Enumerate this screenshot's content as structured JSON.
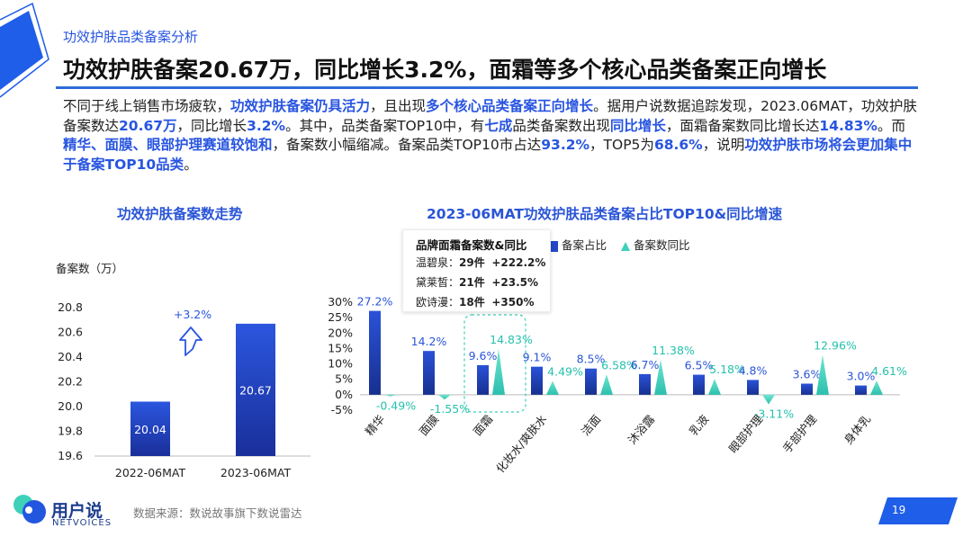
{
  "breadcrumb": "功效护肤品类备案分析",
  "headline": "功效护肤备案20.67万，同比增长3.2%，面霜等多个核心品类备案正向增长",
  "summary": [
    {
      "t": "不同于线上销售市场疲软，",
      "h": false
    },
    {
      "t": "功效护肤备案仍具活力",
      "h": true
    },
    {
      "t": "，且出现",
      "h": false
    },
    {
      "t": "多个核心品类备案正向增长",
      "h": true
    },
    {
      "t": "。据用户说数据追踪发现，2023.06MAT，功效护肤备案数达",
      "h": false
    },
    {
      "t": "20.67万",
      "h": true
    },
    {
      "t": "，同比增长",
      "h": false
    },
    {
      "t": "3.2%",
      "h": true
    },
    {
      "t": "。其中，品类备案TOP10中，有",
      "h": false
    },
    {
      "t": "七成",
      "h": true
    },
    {
      "t": "品类备案数出现",
      "h": false
    },
    {
      "t": "同比增长",
      "h": true
    },
    {
      "t": "，面霜备案数同比增长达",
      "h": false
    },
    {
      "t": "14.83%",
      "h": true
    },
    {
      "t": "。而",
      "h": false
    },
    {
      "t": "精华、面膜、眼部护理赛道较饱和",
      "h": true
    },
    {
      "t": "，备案数小幅缩减。备案品类TOP10市占达",
      "h": false
    },
    {
      "t": "93.2%",
      "h": true
    },
    {
      "t": "，TOP5为",
      "h": false
    },
    {
      "t": "68.6%",
      "h": true
    },
    {
      "t": "，说明",
      "h": false
    },
    {
      "t": "功效护肤市场将会更加集中于备案TOP10品类",
      "h": true
    },
    {
      "t": "。",
      "h": false
    }
  ],
  "left_chart_title": "功效护肤备案数走势",
  "right_chart_title": "2023-06MAT功效护肤品类备案占比TOP10&同比增速",
  "chart_data": [
    {
      "type": "bar",
      "title": "功效护肤备案数走势",
      "ylabel": "备案数（万）",
      "categories": [
        "2022-06MAT",
        "2023-06MAT"
      ],
      "values": [
        20.04,
        20.67
      ],
      "value_labels": [
        "20.04",
        "20.67"
      ],
      "yticks": [
        "20.8",
        "20.6",
        "20.4",
        "20.2",
        "20.0",
        "19.8",
        "19.6"
      ],
      "ylim": [
        19.6,
        20.8
      ],
      "annotation": "+3.2%",
      "colors": {
        "bar_top": "#2b56de",
        "bar_bottom": "#1a2f9a"
      }
    },
    {
      "type": "bar",
      "title": "2023-06MAT功效护肤品类备案占比TOP10&同比增速",
      "categories": [
        "精华",
        "面膜",
        "面霜",
        "化妆水/爽肤水",
        "洁面",
        "沐浴露",
        "乳液",
        "眼部护理",
        "手部护理",
        "身体乳"
      ],
      "series": [
        {
          "name": "备案占比",
          "values": [
            27.2,
            14.2,
            9.6,
            9.1,
            8.5,
            6.7,
            6.5,
            4.8,
            3.6,
            3.0
          ],
          "labels": [
            "27.2%",
            "14.2%",
            "9.6%",
            "9.1%",
            "8.5%",
            "6.7%",
            "6.5%",
            "4.8%",
            "3.6%",
            "3.0%"
          ]
        },
        {
          "name": "备案数同比",
          "values": [
            -0.49,
            -1.55,
            14.83,
            4.49,
            6.58,
            11.38,
            5.18,
            -3.11,
            12.96,
            4.61
          ],
          "labels": [
            "-0.49%",
            "-1.55%",
            "14.83%",
            "4.49%",
            "6.58%",
            "11.38%",
            "5.18%",
            "-3.11%",
            "12.96%",
            "4.61%"
          ]
        }
      ],
      "yticks": [
        "30%",
        "25%",
        "20%",
        "15%",
        "10%",
        "5%",
        "0%",
        "-5%"
      ],
      "ylim": [
        -5,
        30
      ],
      "highlight_category": "面霜",
      "colors": {
        "bar": "#2246c8",
        "growth": "#3ed0b9"
      }
    }
  ],
  "legend_box": {
    "title": "品牌面霜备案数&同比",
    "rows": [
      {
        "brand": "温碧泉：",
        "count": "29件",
        "growth": "+222.2%"
      },
      {
        "brand": "黛莱皙：",
        "count": "21件",
        "growth": "+23.5%"
      },
      {
        "brand": "欧诗漫：",
        "count": "18件",
        "growth": "+350%"
      }
    ]
  },
  "footer": {
    "logo_text": "用户说",
    "logo_sub": "NETVOICES",
    "source": "数据来源：数说故事旗下数说雷达",
    "page": "19"
  }
}
